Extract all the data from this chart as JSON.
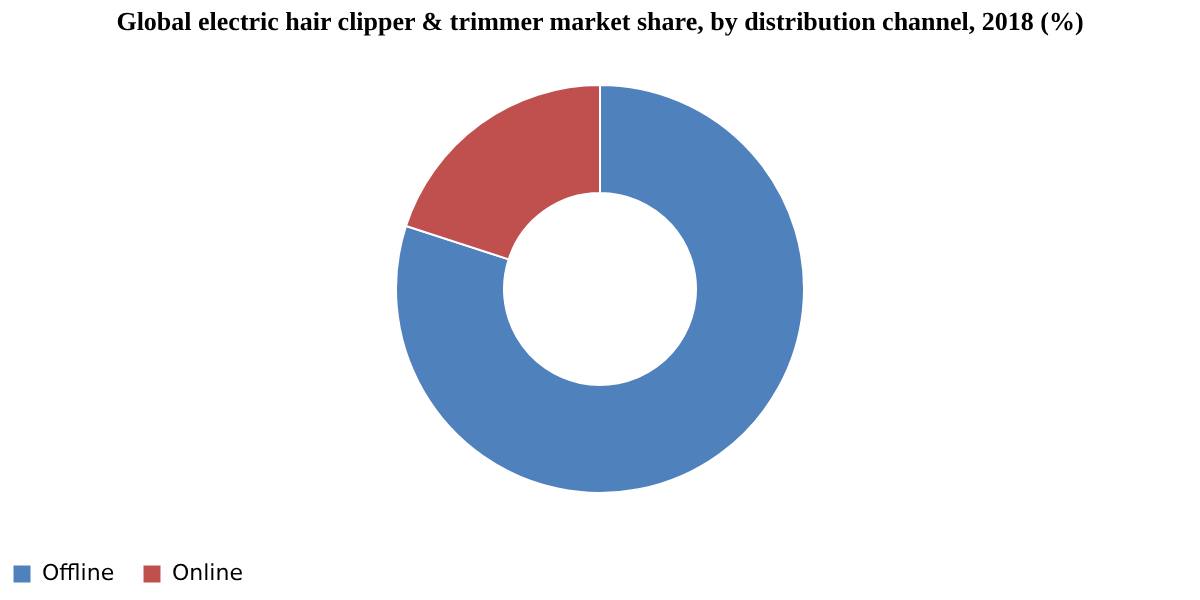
{
  "chart_data": {
    "type": "donut",
    "title": "Global electric hair clipper & trimmer market share, by distribution channel, 2018 (%)",
    "categories": [
      "Offline",
      "Online"
    ],
    "values": [
      80,
      20
    ],
    "colors": [
      "#4f81bd",
      "#c0504d"
    ],
    "legend": "bottom"
  }
}
